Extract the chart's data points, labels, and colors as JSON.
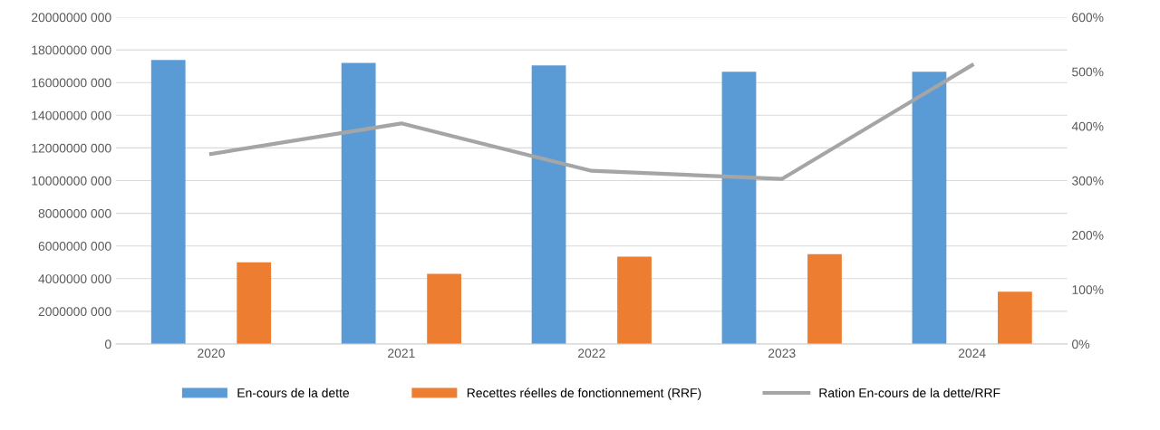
{
  "chart_data": {
    "type": "bar",
    "categories": [
      "2020",
      "2021",
      "2022",
      "2023",
      "2024"
    ],
    "series": [
      {
        "name": "En-cours de la dette",
        "color": "#5b9bd5",
        "values": [
          17380000000,
          17200000000,
          17050000000,
          16660000000,
          16660000000
        ]
      },
      {
        "name": "Recettes réelles de fonctionnement (RRF)",
        "color": "#ed7d31",
        "values": [
          5000000000,
          4300000000,
          5350000000,
          5500000000,
          3200000000
        ]
      },
      {
        "name": "Ration En-cours de la dette/RRF",
        "type": "line",
        "axis": "y2",
        "color": "#a5a5a5",
        "values": [
          349,
          405,
          318,
          303,
          512
        ]
      }
    ],
    "ylim": [
      0,
      20000000000
    ],
    "yticks": [
      {
        "value": 0,
        "label": "0"
      },
      {
        "value": 2000000000,
        "label": "2000000 000"
      },
      {
        "value": 4000000000,
        "label": "4000000 000"
      },
      {
        "value": 6000000000,
        "label": "6000000 000"
      },
      {
        "value": 8000000000,
        "label": "8000000 000"
      },
      {
        "value": 10000000000,
        "label": "10000000 000"
      },
      {
        "value": 12000000000,
        "label": "12000000 000"
      },
      {
        "value": 14000000000,
        "label": "14000000 000"
      },
      {
        "value": 16000000000,
        "label": "16000000 000"
      },
      {
        "value": 18000000000,
        "label": "18000000 000"
      },
      {
        "value": 20000000000,
        "label": "20000000 000"
      }
    ],
    "y2lim": [
      0,
      600
    ],
    "y2ticks": [
      {
        "value": 0,
        "label": "0%"
      },
      {
        "value": 100,
        "label": "100%"
      },
      {
        "value": 200,
        "label": "200%"
      },
      {
        "value": 300,
        "label": "300%"
      },
      {
        "value": 400,
        "label": "400%"
      },
      {
        "value": 500,
        "label": "500%"
      },
      {
        "value": 600,
        "label": "600%"
      }
    ],
    "grid": "y",
    "legend": "bottom",
    "marker": "none",
    "line_style": "solid"
  }
}
